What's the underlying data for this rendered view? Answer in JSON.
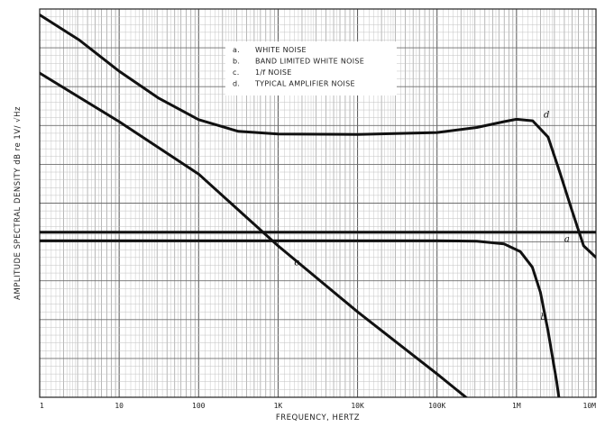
{
  "chart_data": {
    "type": "line",
    "title": "",
    "xlabel": "FREQUENCY, HERTZ",
    "ylabel": "AMPLITUDE SPECTRAL DENSITY dB re 1V/ √Hz",
    "xscale": "log",
    "xlim": [
      1,
      10000000
    ],
    "ylim": [
      0,
      100
    ],
    "x_tick_labels": [
      {
        "x": 1,
        "label": "1"
      },
      {
        "x": 10,
        "label": "10"
      },
      {
        "x": 100,
        "label": "100"
      },
      {
        "x": 1000,
        "label": "1K"
      },
      {
        "x": 10000,
        "label": "10K"
      },
      {
        "x": 100000,
        "label": "100K"
      },
      {
        "x": 1000000,
        "label": "1M"
      },
      {
        "x": 10000000,
        "label": "10M"
      }
    ],
    "y_tick_labels": [],
    "grid": true,
    "legend_position": "top-center",
    "legend": [
      {
        "key": "a.",
        "label": "WHITE NOISE"
      },
      {
        "key": "b.",
        "label": "BAND LIMITED WHITE NOISE"
      },
      {
        "key": "c.",
        "label": "1/f NOISE"
      },
      {
        "key": "d.",
        "label": "TYPICAL AMPLIFIER NOISE"
      }
    ],
    "series": [
      {
        "id": "a",
        "label": "a",
        "points": [
          [
            1,
            42.5
          ],
          [
            10000000,
            42.5
          ]
        ]
      },
      {
        "id": "b",
        "label": "b",
        "points": [
          [
            1,
            40.3
          ],
          [
            100000,
            40.3
          ],
          [
            316000,
            40.2
          ],
          [
            700000,
            39.5
          ],
          [
            1120000,
            37.5
          ],
          [
            1580000,
            33.5
          ],
          [
            2000000,
            27
          ],
          [
            2500000,
            17
          ],
          [
            3200000,
            4
          ],
          [
            3700000,
            -5
          ]
        ]
      },
      {
        "id": "c",
        "label": "c",
        "points": [
          [
            1,
            83.5
          ],
          [
            10,
            71
          ],
          [
            100,
            57.5
          ],
          [
            1000,
            39
          ],
          [
            10000,
            22
          ],
          [
            100000,
            6
          ],
          [
            350000,
            -3
          ]
        ]
      },
      {
        "id": "d",
        "label": "d",
        "points": [
          [
            1,
            98.5
          ],
          [
            3.16,
            92
          ],
          [
            10,
            84
          ],
          [
            31.6,
            77
          ],
          [
            100,
            71.5
          ],
          [
            316,
            68.5
          ],
          [
            1000,
            67.8
          ],
          [
            10000,
            67.7
          ],
          [
            100000,
            68.2
          ],
          [
            316000,
            69.5
          ],
          [
            700000,
            71
          ],
          [
            1000000,
            71.6
          ],
          [
            1600000,
            71.2
          ],
          [
            2500000,
            67
          ],
          [
            3500000,
            58
          ],
          [
            5000000,
            48
          ],
          [
            7000000,
            39
          ],
          [
            10000000,
            36
          ]
        ]
      }
    ],
    "curve_labels": [
      {
        "series": "a",
        "text": "a",
        "x": 4000000,
        "y": 40
      },
      {
        "series": "b",
        "text": "b",
        "x": 2000000,
        "y": 20
      },
      {
        "series": "c",
        "text": "c",
        "x": 1600,
        "y": 34
      },
      {
        "series": "d",
        "text": "d",
        "x": 2200000,
        "y": 72
      }
    ]
  }
}
